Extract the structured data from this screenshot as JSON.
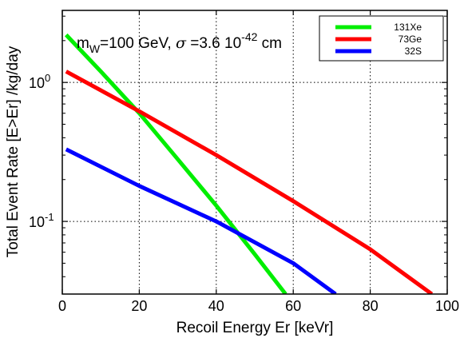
{
  "chart_data": {
    "type": "line",
    "xlabel": "Recoil Energy Er [keVr]",
    "ylabel": "Total Event Rate [E>Er] /kg/day",
    "xlim": [
      0,
      100
    ],
    "ylim": [
      0.03,
      3.3
    ],
    "yscale": "log",
    "grid": true,
    "legend_position": "top-right",
    "x_ticks": [
      "0",
      "20",
      "40",
      "60",
      "80",
      "100"
    ],
    "y_ticks": [
      {
        "base": "10",
        "exp": "0",
        "value": 1
      },
      {
        "base": "10",
        "exp": "-1",
        "value": 0.1
      }
    ],
    "annotation": {
      "m_text": "m",
      "m_sub": "W",
      "main": "=100 GeV, ",
      "sigma": "σ",
      "sigma_text": " =3.6 10",
      "exp": "-42",
      "unit": " cm"
    },
    "series": [
      {
        "name": "131Xe",
        "color": "#00ee00",
        "points": [
          [
            1,
            2.2
          ],
          [
            10,
            1.2
          ],
          [
            20,
            0.6
          ],
          [
            30,
            0.28
          ],
          [
            40,
            0.13
          ],
          [
            50,
            0.058
          ],
          [
            58,
            0.03
          ]
        ]
      },
      {
        "name": "73Ge",
        "color": "#ff0000",
        "points": [
          [
            1,
            1.2
          ],
          [
            20,
            0.62
          ],
          [
            40,
            0.3
          ],
          [
            60,
            0.14
          ],
          [
            80,
            0.063
          ],
          [
            96,
            0.03
          ]
        ]
      },
      {
        "name": "32S",
        "color": "#0000ff",
        "points": [
          [
            1,
            0.33
          ],
          [
            20,
            0.18
          ],
          [
            40,
            0.1
          ],
          [
            60,
            0.05
          ],
          [
            71,
            0.03
          ]
        ]
      }
    ]
  }
}
